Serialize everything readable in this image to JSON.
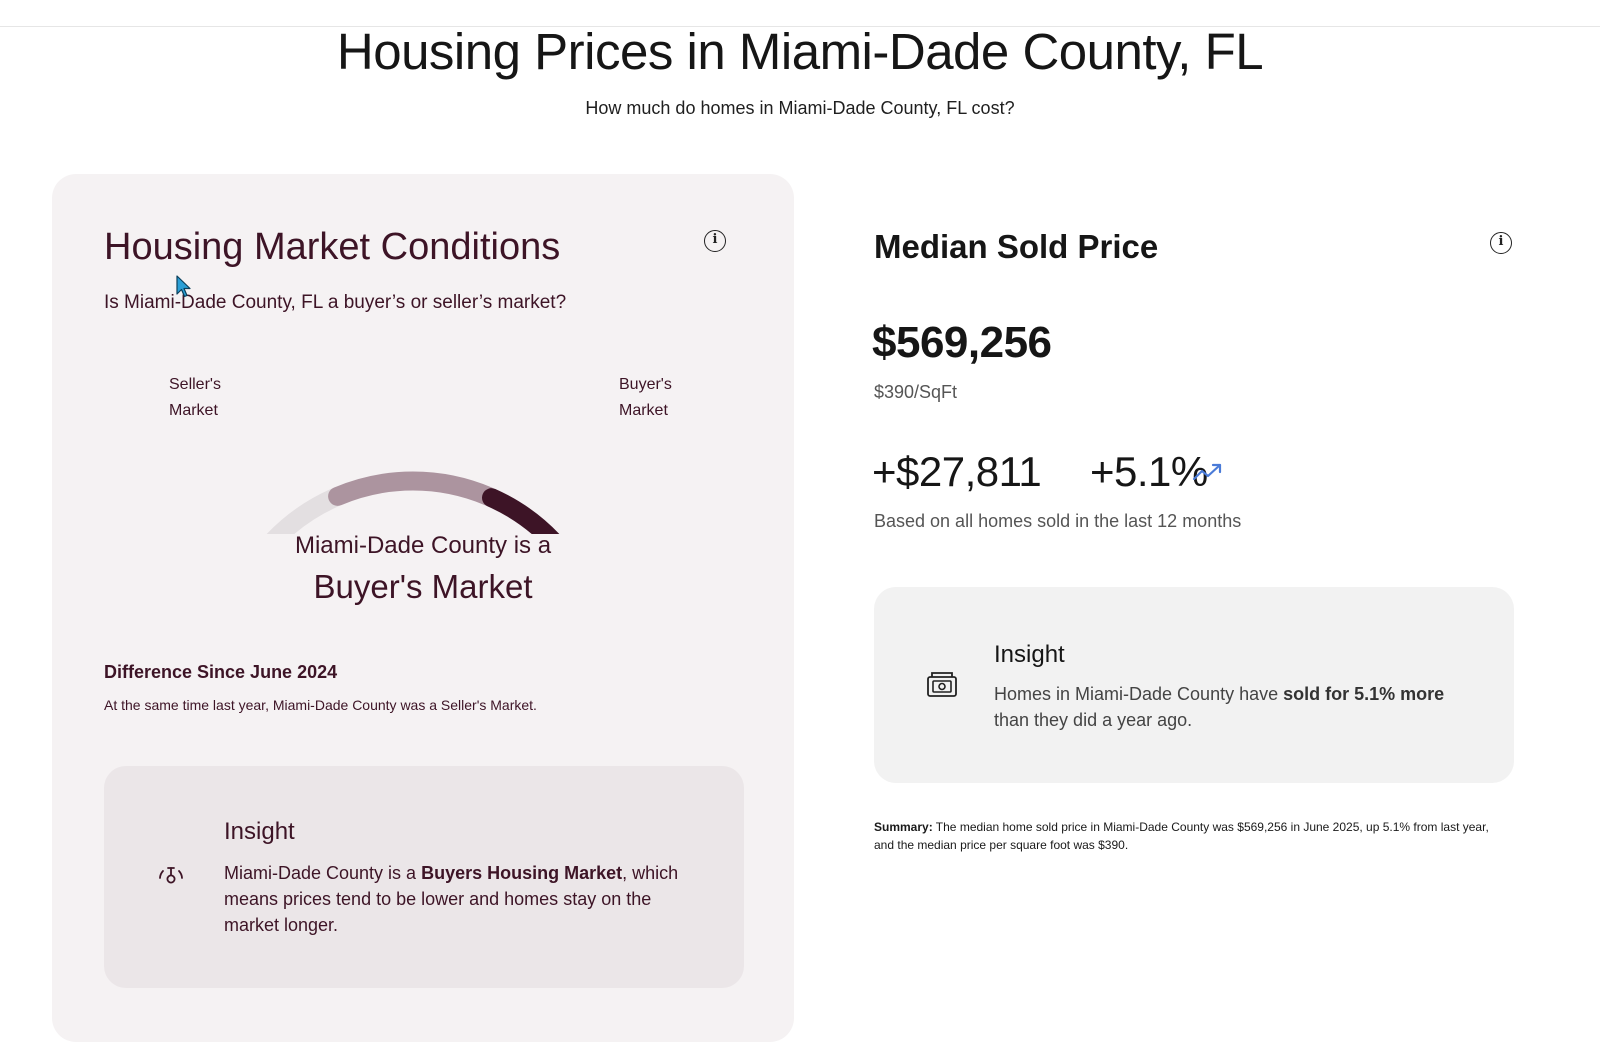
{
  "header": {
    "title": "Housing Prices in Miami-Dade County, FL",
    "subtitle": "How much do homes in Miami-Dade County, FL cost?"
  },
  "market_conditions": {
    "title": "Housing Market Conditions",
    "question": "Is Miami-Dade County, FL a buyer’s or seller’s market?",
    "gauge": {
      "seller_label_line1": "Seller's",
      "seller_label_line2": "Market",
      "buyer_label_line1": "Buyer's",
      "buyer_label_line2": "Market",
      "caption_line1": "Miami-Dade County is a",
      "caption_line2": "Buyer's Market",
      "active_segment": "buyer",
      "colors": {
        "seller": "#e3dfe1",
        "balanced": "#ac949f",
        "buyer": "#3d1426",
        "needle": "#111111"
      }
    },
    "difference": {
      "title": "Difference Since June 2024",
      "text": "At the same time last year, Miami-Dade County was a Seller's Market."
    },
    "insight": {
      "title": "Insight",
      "text_before": "Miami-Dade County is a ",
      "text_bold": "Buyers Housing Market",
      "text_after": ", which means prices tend to be lower and homes stay on the market longer.",
      "icon": "gauge-icon"
    }
  },
  "median_sold_price": {
    "title": "Median Sold Price",
    "price": "$569,256",
    "per_sqft": "$390/SqFt",
    "change_amount": "+$27,811",
    "change_percent": "+5.1%",
    "trend_icon": "trend-up-icon",
    "basis": "Based on all homes sold in the last 12 months",
    "insight": {
      "title": "Insight",
      "text_before": "Homes in Miami-Dade County have ",
      "text_bold": "sold for 5.1% more",
      "text_after": " than they did a year ago.",
      "icon": "money-icon"
    },
    "summary_label": "Summary:",
    "summary_text": " The median home sold price in Miami-Dade County was $569,256 in June 2025, up 5.1% from last year, and the median price per square foot was $390."
  },
  "colors": {
    "accent": "#3d1426",
    "trend": "#4a7bd8",
    "card_bg": "#f5f2f3"
  }
}
